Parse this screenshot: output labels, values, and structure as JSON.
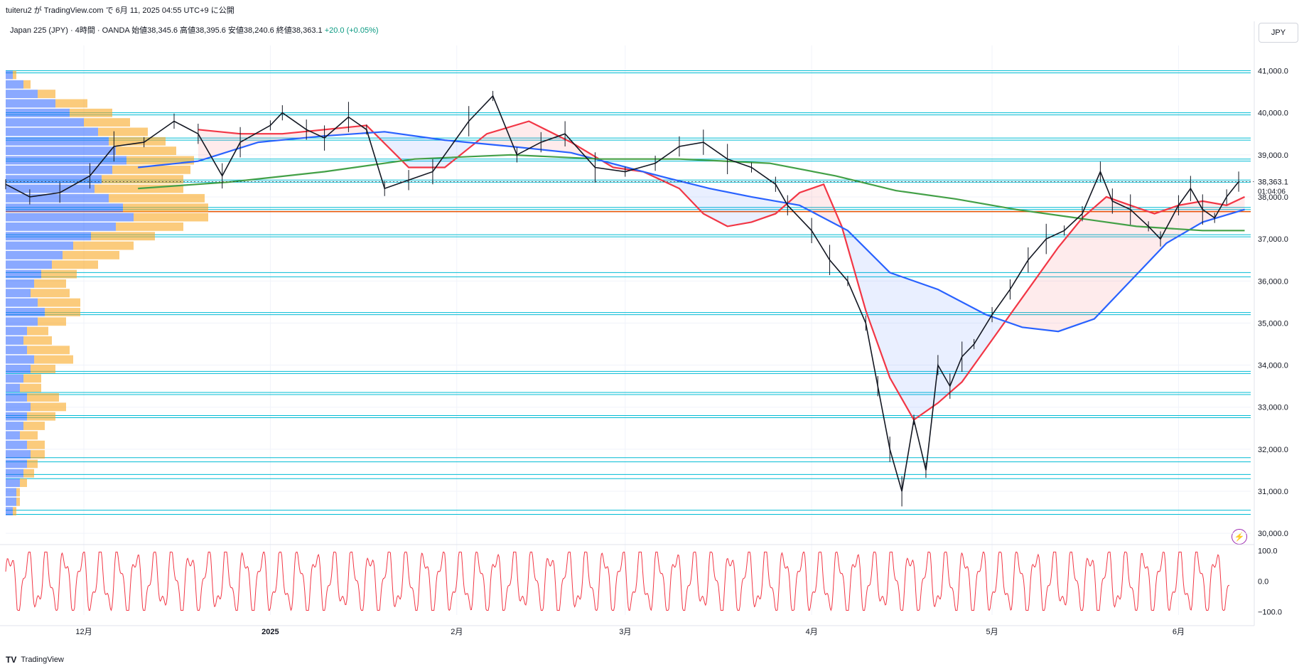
{
  "header": {
    "publisher": "tuiteru2 が TradingView.com で 6月 11, 2025 04:55 UTC+9 に公開",
    "legend_symbol": "Japan 225 (JPY) · 4時間 · OANDA",
    "legend_ohlc": "始値38,345.6 高値38,395.6 安値38,240.6 終値38,363.1",
    "legend_change": "+20.0 (+0.05%)",
    "currency": "JPY"
  },
  "footer": {
    "brand": "TradingView"
  },
  "price_label": {
    "price": "38,363.1",
    "countdown": "01:04:06"
  },
  "colors": {
    "candles": "#131722",
    "ma_fast": "#f23645",
    "ma_mid": "#2962ff",
    "ma_slow": "#43a047",
    "levels": "#00bcd4",
    "hline": "#e65100",
    "osc": "#f23645",
    "vp_blue": "#2962ff",
    "vp_yellow": "#f9a825"
  },
  "chart_data": {
    "type": "line",
    "price_axis": {
      "ylim": [
        29800,
        41600
      ],
      "ticks": [
        30000,
        31000,
        32000,
        33000,
        34000,
        35000,
        36000,
        37000,
        38000,
        39000,
        40000,
        41000
      ],
      "tick_labels": [
        "30,000.0",
        "31,000.0",
        "32,000.0",
        "33,000.0",
        "34,000.0",
        "35,000.0",
        "36,000.0",
        "37,000.0",
        "38,000.0",
        "39,000.0",
        "40,000.0",
        "41,000.0"
      ]
    },
    "time_axis": {
      "range": [
        "2024-11-18",
        "2025-06-13"
      ],
      "labels": [
        {
          "date": "2024-12-01",
          "label": "12月"
        },
        {
          "date": "2025-01-01",
          "label": "2025"
        },
        {
          "date": "2025-02-01",
          "label": "2月"
        },
        {
          "date": "2025-03-01",
          "label": "3月"
        },
        {
          "date": "2025-04-01",
          "label": "4月"
        },
        {
          "date": "2025-05-01",
          "label": "5月"
        },
        {
          "date": "2025-06-01",
          "label": "6月"
        }
      ]
    },
    "series": [
      {
        "name": "",
        "kind": "price",
        "points": [
          [
            "2024-11-18",
            38300
          ],
          [
            "2024-11-22",
            38000
          ],
          [
            "2024-11-27",
            38100
          ],
          [
            "2024-12-02",
            38500
          ],
          [
            "2024-12-06",
            39200
          ],
          [
            "2024-12-11",
            39300
          ],
          [
            "2024-12-16",
            39800
          ],
          [
            "2024-12-20",
            39500
          ],
          [
            "2024-12-24",
            38500
          ],
          [
            "2024-12-27",
            39300
          ],
          [
            "2025-01-01",
            39700
          ],
          [
            "2025-01-03",
            40000
          ],
          [
            "2025-01-07",
            39600
          ],
          [
            "2025-01-10",
            39400
          ],
          [
            "2025-01-14",
            39900
          ],
          [
            "2025-01-17",
            39600
          ],
          [
            "2025-01-20",
            38200
          ],
          [
            "2025-01-24",
            38400
          ],
          [
            "2025-01-28",
            38600
          ],
          [
            "2025-02-03",
            39800
          ],
          [
            "2025-02-07",
            40400
          ],
          [
            "2025-02-11",
            39000
          ],
          [
            "2025-02-15",
            39300
          ],
          [
            "2025-02-19",
            39500
          ],
          [
            "2025-02-24",
            38700
          ],
          [
            "2025-03-01",
            38600
          ],
          [
            "2025-03-06",
            38800
          ],
          [
            "2025-03-10",
            39200
          ],
          [
            "2025-03-14",
            39300
          ],
          [
            "2025-03-18",
            38900
          ],
          [
            "2025-03-22",
            38700
          ],
          [
            "2025-03-26",
            38300
          ],
          [
            "2025-03-28",
            37800
          ],
          [
            "2025-04-01",
            37200
          ],
          [
            "2025-04-04",
            36500
          ],
          [
            "2025-04-07",
            36000
          ],
          [
            "2025-04-10",
            35000
          ],
          [
            "2025-04-12",
            33500
          ],
          [
            "2025-04-14",
            32000
          ],
          [
            "2025-04-16",
            31000
          ],
          [
            "2025-04-18",
            32700
          ],
          [
            "2025-04-20",
            31500
          ],
          [
            "2025-04-22",
            34000
          ],
          [
            "2025-04-24",
            33500
          ],
          [
            "2025-04-26",
            34200
          ],
          [
            "2025-04-28",
            34500
          ],
          [
            "2025-05-01",
            35200
          ],
          [
            "2025-05-04",
            35800
          ],
          [
            "2025-05-07",
            36500
          ],
          [
            "2025-05-10",
            37000
          ],
          [
            "2025-05-13",
            37200
          ],
          [
            "2025-05-16",
            37600
          ],
          [
            "2025-05-19",
            38600
          ],
          [
            "2025-05-21",
            37900
          ],
          [
            "2025-05-24",
            37700
          ],
          [
            "2025-05-27",
            37300
          ],
          [
            "2025-05-29",
            37000
          ],
          [
            "2025-06-01",
            37800
          ],
          [
            "2025-06-03",
            38200
          ],
          [
            "2025-06-05",
            37700
          ],
          [
            "2025-06-07",
            37500
          ],
          [
            "2025-06-09",
            38000
          ],
          [
            "2025-06-11",
            38363
          ]
        ]
      },
      {
        "name": "",
        "kind": "ma_fast",
        "points": [
          [
            "2024-12-20",
            39600
          ],
          [
            "2024-12-27",
            39500
          ],
          [
            "2025-01-03",
            39500
          ],
          [
            "2025-01-10",
            39600
          ],
          [
            "2025-01-17",
            39700
          ],
          [
            "2025-01-24",
            38700
          ],
          [
            "2025-01-30",
            38700
          ],
          [
            "2025-02-06",
            39500
          ],
          [
            "2025-02-13",
            39800
          ],
          [
            "2025-02-20",
            39300
          ],
          [
            "2025-02-27",
            38700
          ],
          [
            "2025-03-04",
            38600
          ],
          [
            "2025-03-10",
            38200
          ],
          [
            "2025-03-14",
            37600
          ],
          [
            "2025-03-18",
            37300
          ],
          [
            "2025-03-22",
            37400
          ],
          [
            "2025-03-26",
            37600
          ],
          [
            "2025-03-30",
            38100
          ],
          [
            "2025-04-03",
            38300
          ],
          [
            "2025-04-06",
            37300
          ],
          [
            "2025-04-10",
            35300
          ],
          [
            "2025-04-14",
            33700
          ],
          [
            "2025-04-18",
            32700
          ],
          [
            "2025-04-22",
            33100
          ],
          [
            "2025-04-26",
            33600
          ],
          [
            "2025-04-30",
            34400
          ],
          [
            "2025-05-04",
            35200
          ],
          [
            "2025-05-08",
            36000
          ],
          [
            "2025-05-12",
            36800
          ],
          [
            "2025-05-16",
            37500
          ],
          [
            "2025-05-20",
            38000
          ],
          [
            "2025-05-24",
            37800
          ],
          [
            "2025-05-28",
            37600
          ],
          [
            "2025-06-01",
            37800
          ],
          [
            "2025-06-05",
            37900
          ],
          [
            "2025-06-09",
            37800
          ],
          [
            "2025-06-12",
            38000
          ]
        ]
      },
      {
        "name": "",
        "kind": "ma_mid",
        "points": [
          [
            "2024-12-10",
            38700
          ],
          [
            "2024-12-20",
            38850
          ],
          [
            "2024-12-30",
            39300
          ],
          [
            "2025-01-10",
            39450
          ],
          [
            "2025-01-20",
            39550
          ],
          [
            "2025-01-30",
            39350
          ],
          [
            "2025-02-10",
            39200
          ],
          [
            "2025-02-20",
            39050
          ],
          [
            "2025-02-28",
            38750
          ],
          [
            "2025-03-08",
            38450
          ],
          [
            "2025-03-15",
            38200
          ],
          [
            "2025-03-22",
            38000
          ],
          [
            "2025-03-30",
            37800
          ],
          [
            "2025-04-07",
            37200
          ],
          [
            "2025-04-14",
            36200
          ],
          [
            "2025-04-22",
            35800
          ],
          [
            "2025-04-30",
            35200
          ],
          [
            "2025-05-06",
            34900
          ],
          [
            "2025-05-12",
            34800
          ],
          [
            "2025-05-18",
            35100
          ],
          [
            "2025-05-24",
            36000
          ],
          [
            "2025-05-30",
            36900
          ],
          [
            "2025-06-05",
            37400
          ],
          [
            "2025-06-12",
            37700
          ]
        ]
      },
      {
        "name": "",
        "kind": "ma_slow",
        "points": [
          [
            "2024-12-10",
            38200
          ],
          [
            "2024-12-25",
            38350
          ],
          [
            "2025-01-10",
            38600
          ],
          [
            "2025-01-25",
            38900
          ],
          [
            "2025-02-10",
            39000
          ],
          [
            "2025-02-25",
            38900
          ],
          [
            "2025-03-10",
            38900
          ],
          [
            "2025-03-25",
            38800
          ],
          [
            "2025-04-05",
            38500
          ],
          [
            "2025-04-15",
            38150
          ],
          [
            "2025-04-25",
            37950
          ],
          [
            "2025-05-05",
            37700
          ],
          [
            "2025-05-15",
            37500
          ],
          [
            "2025-05-25",
            37300
          ],
          [
            "2025-06-05",
            37200
          ],
          [
            "2025-06-12",
            37200
          ]
        ]
      }
    ],
    "horizontal_levels": [
      41000,
      40950,
      40000,
      39950,
      39400,
      39350,
      38900,
      38850,
      38400,
      38350,
      37750,
      37700,
      37100,
      37050,
      36200,
      36100,
      35250,
      35200,
      33850,
      33800,
      33350,
      33300,
      32800,
      32750,
      31800,
      31700,
      31400,
      31300,
      30550,
      30450
    ],
    "highlight_level": 37650,
    "volume_profile": {
      "bins_blue": [
        0.2,
        0.5,
        0.9,
        1.4,
        1.8,
        2.2,
        2.6,
        2.9,
        3.1,
        3.4,
        3.0,
        2.7,
        2.5,
        2.9,
        3.3,
        3.6,
        3.1,
        2.4,
        1.9,
        1.6,
        1.3,
        1.0,
        0.8,
        0.7,
        0.9,
        1.1,
        0.9,
        0.6,
        0.5,
        0.6,
        0.8,
        0.7,
        0.5,
        0.4,
        0.6,
        0.7,
        0.6,
        0.5,
        0.4,
        0.6,
        0.7,
        0.6,
        0.5,
        0.4,
        0.3,
        0.3,
        0.2
      ],
      "bins_yellow": [
        0.1,
        0.2,
        0.5,
        0.9,
        1.2,
        1.3,
        1.4,
        1.6,
        1.7,
        1.9,
        2.2,
        2.3,
        2.5,
        2.7,
        2.4,
        2.1,
        1.9,
        1.8,
        1.7,
        1.6,
        1.3,
        1.0,
        0.9,
        1.1,
        1.2,
        1.0,
        0.8,
        0.6,
        0.8,
        1.2,
        1.1,
        0.7,
        0.5,
        0.6,
        0.9,
        1.0,
        0.8,
        0.6,
        0.5,
        0.5,
        0.4,
        0.3,
        0.3,
        0.2,
        0.1,
        0.1,
        0.1
      ]
    }
  },
  "oscillator": {
    "ylim": [
      -110,
      110
    ],
    "ticks": [
      100,
      0,
      -100
    ],
    "tick_labels": [
      "100.0",
      "0.0",
      "−100.0"
    ],
    "cycles": 68
  }
}
